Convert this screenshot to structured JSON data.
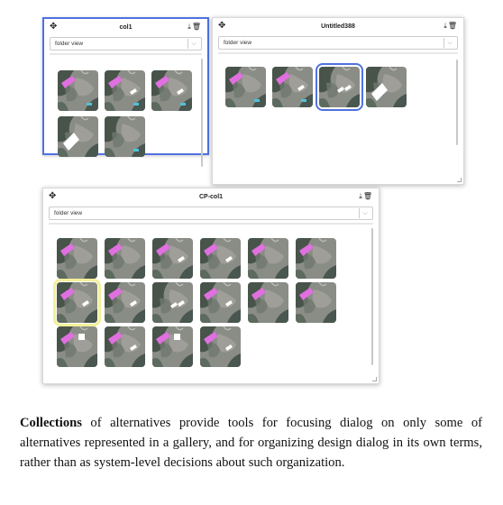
{
  "panels": [
    {
      "title": "col1",
      "view_select": "folder view",
      "active": true,
      "icons": {
        "move": "move-icon",
        "download": "download-icon",
        "delete": "trash-icon"
      },
      "thumbs": [
        {
          "variant": "pink-shape"
        },
        {
          "variant": "pink-shape-dash"
        },
        {
          "variant": "pink-shape-dash"
        },
        {
          "variant": "white-big"
        },
        {
          "variant": "blue-mark"
        }
      ]
    },
    {
      "title": "Untitled388",
      "view_select": "folder view",
      "active": false,
      "icons": {
        "move": "move-icon",
        "download": "download-icon",
        "delete": "trash-icon"
      },
      "thumbs": [
        {
          "variant": "pink-shape"
        },
        {
          "variant": "pink-shape-dash"
        },
        {
          "variant": "white-dash-selected"
        },
        {
          "variant": "white-big"
        }
      ]
    },
    {
      "title": "CP-col1",
      "view_select": "folder view",
      "active": false,
      "icons": {
        "move": "move-icon",
        "download": "download-icon",
        "delete": "trash-icon"
      },
      "thumbs": [
        {
          "variant": "pink"
        },
        {
          "variant": "pink"
        },
        {
          "variant": "pink-dash"
        },
        {
          "variant": "pink-dash"
        },
        {
          "variant": "pink"
        },
        {
          "variant": "pink"
        },
        {
          "variant": "pink-dash-yellow"
        },
        {
          "variant": "pink-dash"
        },
        {
          "variant": "white-dash"
        },
        {
          "variant": "pink-dash"
        },
        {
          "variant": "pink"
        },
        {
          "variant": "pink"
        },
        {
          "variant": "pink-square"
        },
        {
          "variant": "pink-dash"
        },
        {
          "variant": "pink-square"
        },
        {
          "variant": "pink-dash"
        }
      ]
    }
  ],
  "caption": {
    "lead": "Collections",
    "body": " of alternatives provide tools for focusing dialog on only some of alternatives represented in a gallery, and for organizing design dialog in its own terms, rather than as system-level decisions about such organization."
  },
  "colors": {
    "selection_blue": "#4f72e0",
    "selection_yellow": "#f3f09a",
    "accent_pink": "#e070e0"
  }
}
